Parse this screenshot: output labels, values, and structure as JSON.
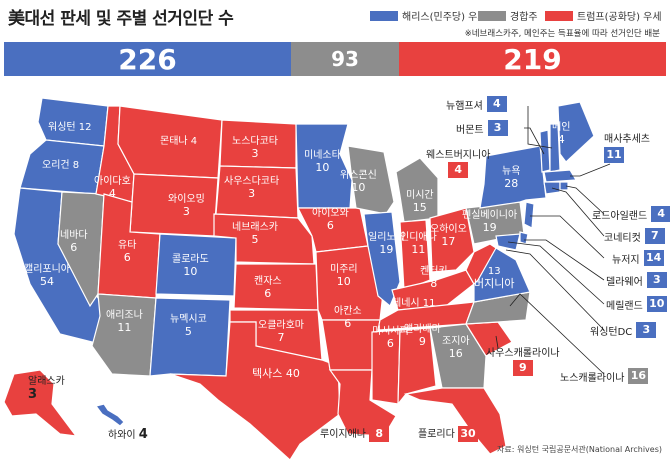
{
  "title": "美대선 판세 및 주별 선거인단 수",
  "legend": [
    {
      "label": "해리스(민주당) 우세",
      "color": "#4a6fc0"
    },
    {
      "label": "경합주",
      "color": "#8d8d8d"
    },
    {
      "label": "트럼프(공화당) 우세",
      "color": "#e8413f"
    }
  ],
  "note": "※네브래스카주, 메인주는 득표율에 따라 선거인단 배분",
  "totals": {
    "harris": "226",
    "tossup": "93",
    "trump": "219"
  },
  "colors": {
    "blue": "#4a6fc0",
    "gray": "#8d8d8d",
    "red": "#e8413f"
  },
  "states": {
    "wa": {
      "name": "워싱턴",
      "votes": "12"
    },
    "or": {
      "name": "오리건",
      "votes": "8"
    },
    "ca": {
      "name": "캘리포니아",
      "votes": "54"
    },
    "nv": {
      "name": "네바다",
      "votes": "6"
    },
    "id": {
      "name": "아이다호",
      "votes": "4"
    },
    "mt": {
      "name": "몬태나",
      "votes": "4"
    },
    "wy": {
      "name": "와이오밍",
      "votes": "3"
    },
    "ut": {
      "name": "유타",
      "votes": "6"
    },
    "az": {
      "name": "애리조나",
      "votes": "11"
    },
    "co": {
      "name": "콜로라도",
      "votes": "10"
    },
    "nm": {
      "name": "뉴멕시코",
      "votes": "5"
    },
    "nd": {
      "name": "노스다코타",
      "votes": "3"
    },
    "sd": {
      "name": "사우스다코타",
      "votes": "3"
    },
    "ne": {
      "name": "네브래스카",
      "votes": "5"
    },
    "ks": {
      "name": "캔자스",
      "votes": "6"
    },
    "ok": {
      "name": "오클라호마",
      "votes": "7"
    },
    "tx": {
      "name": "텍사스",
      "votes": "40"
    },
    "mn": {
      "name": "미네소타",
      "votes": "10"
    },
    "ia": {
      "name": "아이오와",
      "votes": "6"
    },
    "mo": {
      "name": "미주리",
      "votes": "10"
    },
    "ar": {
      "name": "아칸소",
      "votes": "6"
    },
    "la": {
      "name": "루이지애나",
      "votes": "8"
    },
    "wi": {
      "name": "위스콘신",
      "votes": "10"
    },
    "il": {
      "name": "일리노이",
      "votes": "19"
    },
    "mi": {
      "name": "미시간",
      "votes": "15"
    },
    "in": {
      "name": "인디애나",
      "votes": "11"
    },
    "oh": {
      "name": "오하이오",
      "votes": "17"
    },
    "ky": {
      "name": "켄터키",
      "votes": "8"
    },
    "tn": {
      "name": "테네시",
      "votes": "11"
    },
    "ms": {
      "name": "미시시피",
      "votes": "6"
    },
    "al": {
      "name": "앨라배마",
      "votes": "9"
    },
    "ga": {
      "name": "조지아",
      "votes": "16"
    },
    "fl": {
      "name": "플로리다",
      "votes": "30"
    },
    "sc": {
      "name": "사우스캐롤라이나",
      "votes": "9"
    },
    "nc": {
      "name": "노스캐롤라이나",
      "votes": "16"
    },
    "va": {
      "name": "버지니아",
      "votes": "13"
    },
    "wv": {
      "name": "웨스트버지니아",
      "votes": "4"
    },
    "pa": {
      "name": "펜실베이니아",
      "votes": "19"
    },
    "ny": {
      "name": "뉴욕",
      "votes": "28"
    },
    "vt": {
      "name": "버몬트",
      "votes": "3"
    },
    "nh": {
      "name": "뉴햄프셔",
      "votes": "4"
    },
    "me": {
      "name": "메인",
      "votes": "4"
    },
    "ma": {
      "name": "매사추세츠",
      "votes": "11"
    },
    "ri": {
      "name": "로드아일랜드",
      "votes": "4"
    },
    "ct": {
      "name": "코네티컷",
      "votes": "7"
    },
    "nj": {
      "name": "뉴저지",
      "votes": "14"
    },
    "de": {
      "name": "델라웨어",
      "votes": "3"
    },
    "md": {
      "name": "메릴랜드",
      "votes": "10"
    },
    "dc": {
      "name": "워싱턴DC",
      "votes": "3"
    },
    "ak": {
      "name": "알래스카",
      "votes": "3"
    },
    "hi": {
      "name": "하와이",
      "votes": "4"
    }
  },
  "source": "자료: 워싱턴 국립공문서관(National Archives)"
}
